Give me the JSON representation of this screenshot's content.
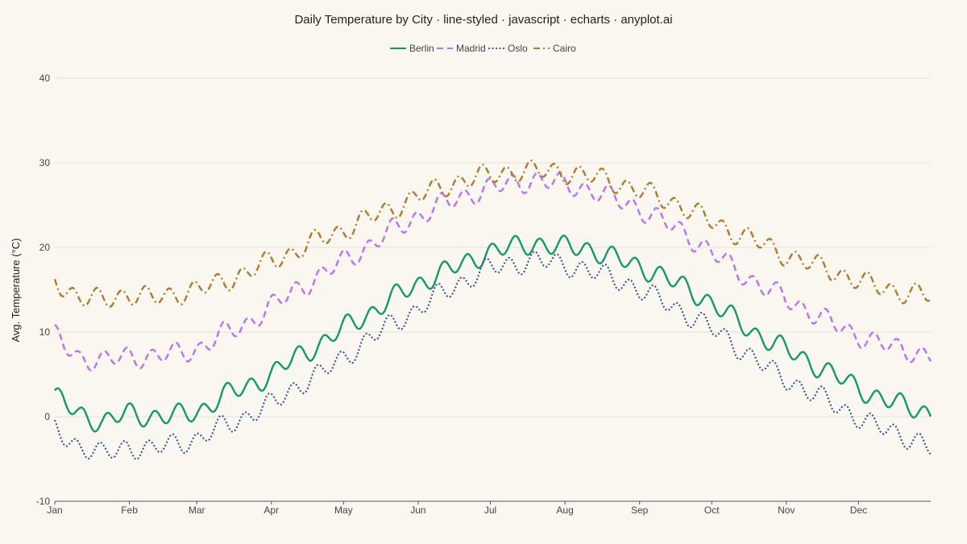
{
  "chart_data": {
    "type": "line",
    "title": "Daily Temperature by City · line-styled · javascript · echarts · anyplot.ai",
    "ylabel": "Avg. Temperature (°C)",
    "xlabel": "",
    "ylim": [
      -10,
      40
    ],
    "yticks": [
      "40",
      "30",
      "20",
      "10",
      "0",
      "-10"
    ],
    "ytick_values": [
      40,
      30,
      20,
      10,
      0,
      -10
    ],
    "x_axis_type": "day-of-year",
    "x_range_days": [
      1,
      365
    ],
    "xticks": [
      "Jan",
      "Feb",
      "Mar",
      "Apr",
      "May",
      "Jun",
      "Jul",
      "Aug",
      "Sep",
      "Oct",
      "Nov",
      "Dec"
    ],
    "xtick_days": [
      1,
      32,
      60,
      91,
      121,
      152,
      182,
      213,
      244,
      274,
      305,
      335
    ],
    "grid": true,
    "legend_position": "top-center",
    "series": [
      {
        "name": "Berlin",
        "color": "#149a6a",
        "style": "solid",
        "x": [
          1,
          11,
          21,
          31,
          41,
          51,
          61,
          71,
          81,
          91,
          101,
          111,
          121,
          131,
          141,
          151,
          161,
          171,
          181,
          191,
          201,
          211,
          221,
          231,
          241,
          251,
          261,
          271,
          281,
          291,
          301,
          311,
          321,
          331,
          341,
          351,
          361,
          365
        ],
        "y": [
          2.4,
          0.3,
          -0.7,
          0.4,
          0.0,
          0.1,
          0.6,
          2.5,
          3.5,
          5.0,
          7.0,
          8.5,
          10.5,
          12.0,
          14.0,
          15.5,
          17.0,
          18.0,
          19.5,
          20.0,
          20.5,
          20.0,
          20.0,
          19.0,
          18.0,
          17.0,
          15.5,
          14.0,
          12.0,
          10.0,
          8.5,
          7.0,
          5.5,
          4.0,
          2.5,
          1.5,
          0.8,
          0.3
        ]
      },
      {
        "name": "Madrid",
        "color": "#bf6ff0",
        "style": "dashed",
        "x": [
          1,
          11,
          21,
          31,
          41,
          51,
          61,
          71,
          81,
          91,
          101,
          111,
          121,
          131,
          141,
          151,
          161,
          171,
          181,
          191,
          201,
          211,
          221,
          231,
          241,
          251,
          261,
          271,
          281,
          291,
          301,
          311,
          321,
          331,
          341,
          351,
          361,
          365
        ],
        "y": [
          9.5,
          7.0,
          6.5,
          7.2,
          7.0,
          7.5,
          8.0,
          9.8,
          11.0,
          13.0,
          15.0,
          16.5,
          18.5,
          20.0,
          22.0,
          23.5,
          25.0,
          26.0,
          27.0,
          27.5,
          28.0,
          27.5,
          27.0,
          26.0,
          25.0,
          23.5,
          22.0,
          20.0,
          18.0,
          16.0,
          14.5,
          13.0,
          11.5,
          10.0,
          9.0,
          8.0,
          7.5,
          7.2
        ]
      },
      {
        "name": "Oslo",
        "color": "#3c5a93",
        "style": "dotted",
        "x": [
          1,
          11,
          21,
          31,
          41,
          51,
          61,
          71,
          81,
          91,
          101,
          111,
          121,
          131,
          141,
          151,
          161,
          171,
          181,
          191,
          201,
          211,
          221,
          231,
          241,
          251,
          261,
          271,
          281,
          291,
          301,
          311,
          321,
          331,
          341,
          351,
          361,
          365
        ],
        "y": [
          -1.5,
          -3.5,
          -4.5,
          -3.5,
          -4.0,
          -3.0,
          -2.8,
          -1.0,
          0.0,
          1.5,
          3.5,
          5.0,
          7.0,
          9.0,
          11.0,
          12.5,
          14.5,
          16.0,
          17.5,
          18.0,
          18.5,
          18.0,
          17.5,
          16.5,
          15.5,
          14.0,
          12.5,
          11.0,
          9.0,
          7.0,
          5.0,
          3.5,
          2.0,
          0.5,
          -1.0,
          -2.0,
          -3.0,
          -3.8
        ]
      },
      {
        "name": "Cairo",
        "color": "#b07a2a",
        "style": "dashdot",
        "x": [
          1,
          11,
          21,
          31,
          41,
          51,
          61,
          71,
          81,
          91,
          101,
          111,
          121,
          131,
          141,
          151,
          161,
          171,
          181,
          191,
          201,
          211,
          221,
          231,
          241,
          251,
          261,
          271,
          281,
          291,
          301,
          311,
          321,
          331,
          341,
          351,
          361,
          365
        ],
        "y": [
          16.2,
          14.0,
          13.8,
          14.5,
          14.0,
          14.5,
          15.0,
          16.0,
          17.0,
          18.5,
          19.5,
          21.0,
          22.0,
          23.5,
          24.5,
          26.0,
          27.0,
          28.0,
          28.5,
          29.0,
          29.0,
          29.0,
          28.5,
          28.0,
          27.0,
          26.0,
          25.0,
          23.5,
          22.0,
          21.0,
          19.5,
          18.5,
          17.5,
          16.5,
          15.5,
          14.8,
          14.5,
          14.2
        ]
      }
    ]
  }
}
